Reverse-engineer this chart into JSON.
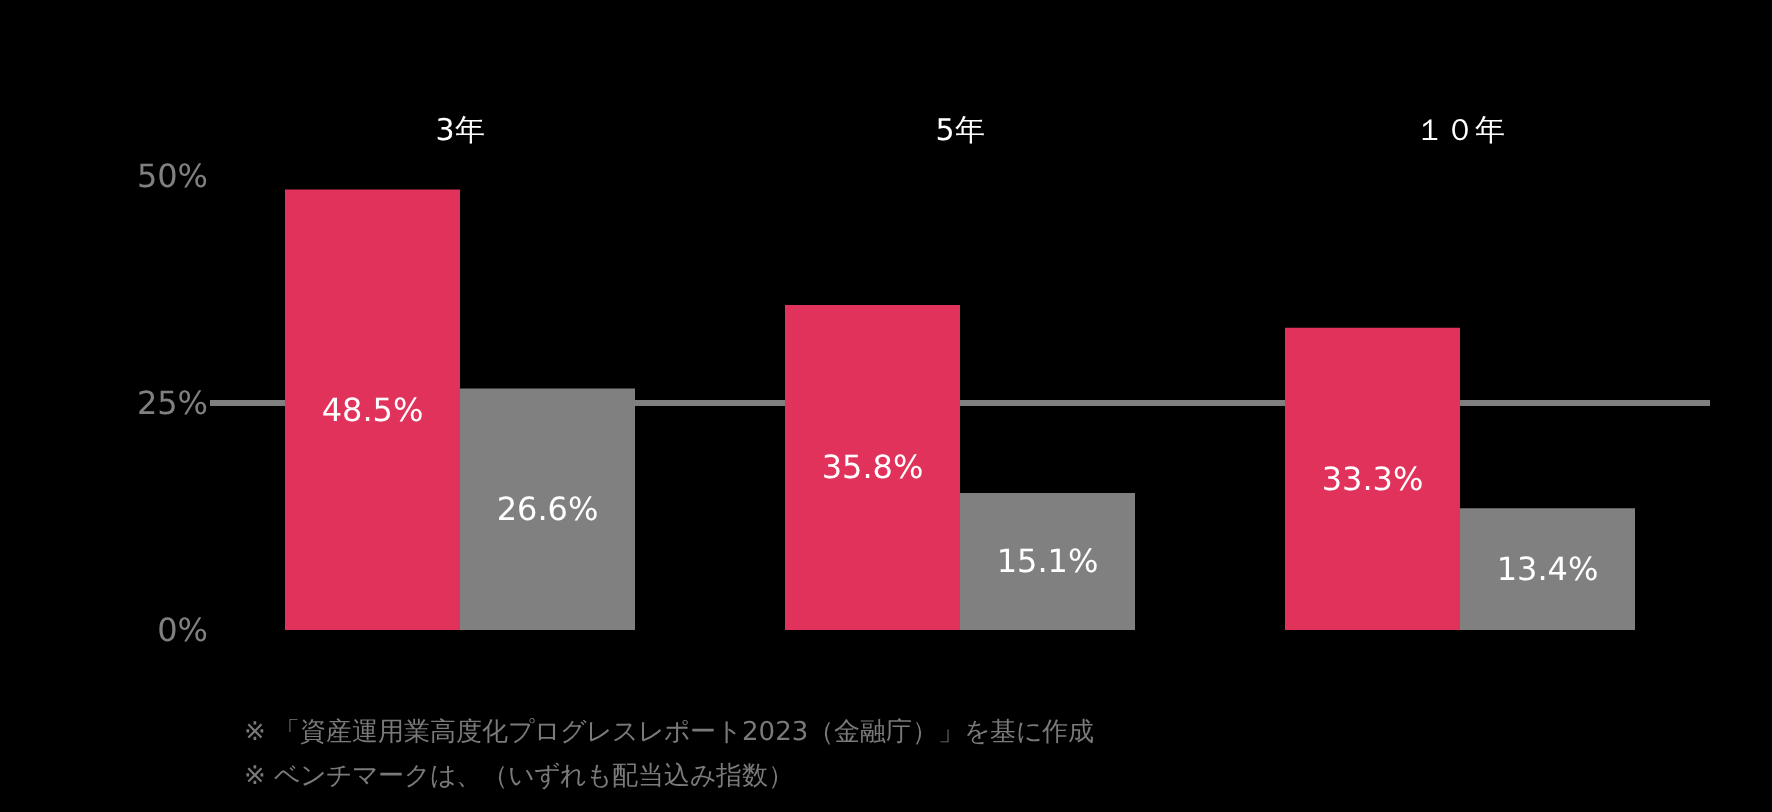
{
  "chart_data": {
    "type": "bar",
    "categories": [
      "3年",
      "5年",
      "１０年"
    ],
    "series": [
      {
        "color": "#e0325a",
        "values": [
          48.5,
          35.8,
          33.3
        ],
        "value_labels": [
          "48.5%",
          "35.8%",
          "33.3%"
        ]
      },
      {
        "color": "#808080",
        "values": [
          26.6,
          15.1,
          13.4
        ],
        "value_labels": [
          "26.6%",
          "15.1%",
          "13.4%"
        ]
      }
    ],
    "ylim": [
      0,
      50
    ],
    "yticks": [
      {
        "value": 0,
        "label": "0%"
      },
      {
        "value": 25,
        "label": "25%"
      },
      {
        "value": 50,
        "label": "50%"
      }
    ],
    "grid": "y",
    "annotations": [
      "※ 「資産運用業高度化プログレスレポート2023（金融庁）」を基に作成",
      "※ ベンチマークは、（いずれも配当込み指数）"
    ]
  }
}
